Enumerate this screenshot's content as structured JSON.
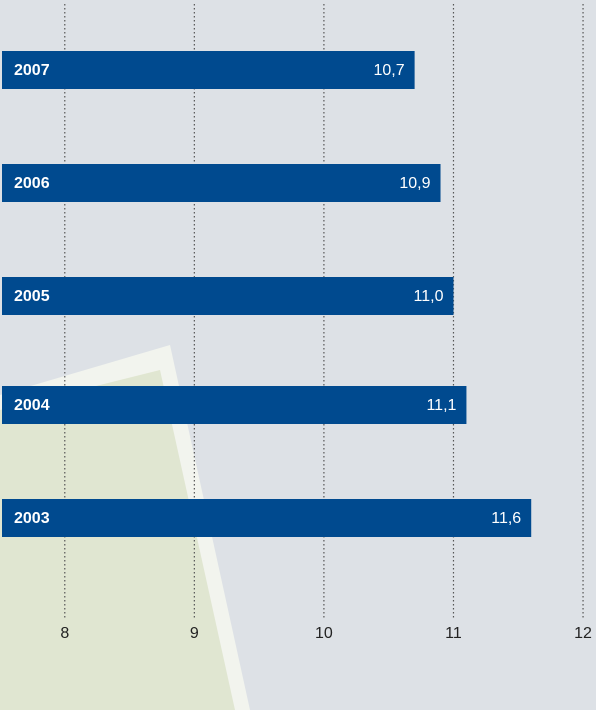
{
  "chart_data": {
    "type": "barh",
    "categories": [
      "2007",
      "2006",
      "2005",
      "2004",
      "2003"
    ],
    "values": [
      10.7,
      10.9,
      11.0,
      11.1,
      11.6
    ],
    "value_labels": [
      "10,7",
      "10,9",
      "11,0",
      "11,1",
      "11,6"
    ],
    "color": "#004a8f",
    "xlim": [
      7.5,
      12.1
    ],
    "xticks": [
      8,
      9,
      10,
      11,
      12
    ],
    "grid": true
  }
}
